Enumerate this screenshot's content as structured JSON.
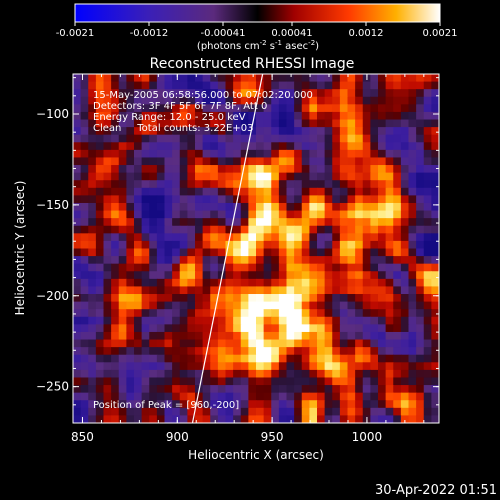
{
  "colorbar": {
    "ticks": [
      "-0.0021",
      "-0.0012",
      "-0.00041",
      "0.00041",
      "0.0012",
      "0.0021"
    ],
    "units_main": "(photons cm",
    "units_exp1": "-2",
    "units_mid": " s",
    "units_exp2": "-1",
    "units_mid2": " asec",
    "units_exp3": "-2",
    "units_end": ")"
  },
  "chart_data": {
    "type": "heatmap",
    "title": "Reconstructed RHESSI Image",
    "xlabel": "Heliocentric X (arcsec)",
    "ylabel": "Heliocentric Y (arcsec)",
    "xlim": [
      845,
      1038
    ],
    "ylim": [
      -270,
      -78
    ],
    "x_ticks": [
      850,
      900,
      950,
      1000
    ],
    "y_ticks": [
      -100,
      -150,
      -200,
      -250
    ],
    "x_tick_labels": [
      "850",
      "900",
      "950",
      "1000"
    ],
    "y_tick_labels": [
      "−100",
      "−150",
      "−200",
      "−250"
    ],
    "colorbar_range": [
      -0.0021,
      0.0021
    ],
    "annotations": [
      "15-May-2005 06:58:56.000 to 07:02:20.000",
      "Detectors: 3F 4F 5F 6F 7F 8F, Att 0",
      "Energy Range: 12.0 - 25.0 keV",
      "Clean     Total counts: 3.22E+03"
    ],
    "peak_label": "Position of Peak = [960,-200]",
    "peak": [
      960,
      -200
    ],
    "limb_line": [
      [
        908,
        -270
      ],
      [
        945,
        -78
      ]
    ]
  },
  "timestamp": "30-Apr-2022 01:51"
}
